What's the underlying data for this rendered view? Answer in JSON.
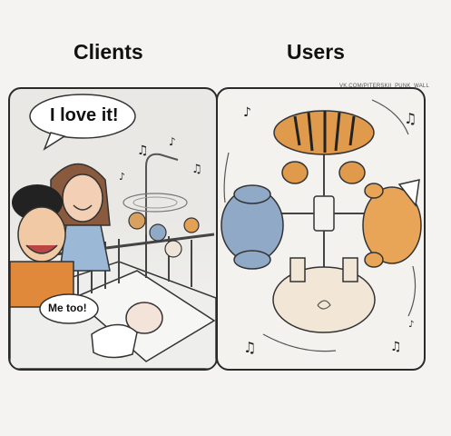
{
  "headings": {
    "left": "Clients",
    "right": "Users"
  },
  "credit": "VK.COM/PITERSKII_PUNK_WALL",
  "bubbles": {
    "client": "I love it!",
    "me_too": "Me too!"
  },
  "icons": {
    "note": "music-note-icon",
    "swirl": "motion-swirl-icon"
  }
}
